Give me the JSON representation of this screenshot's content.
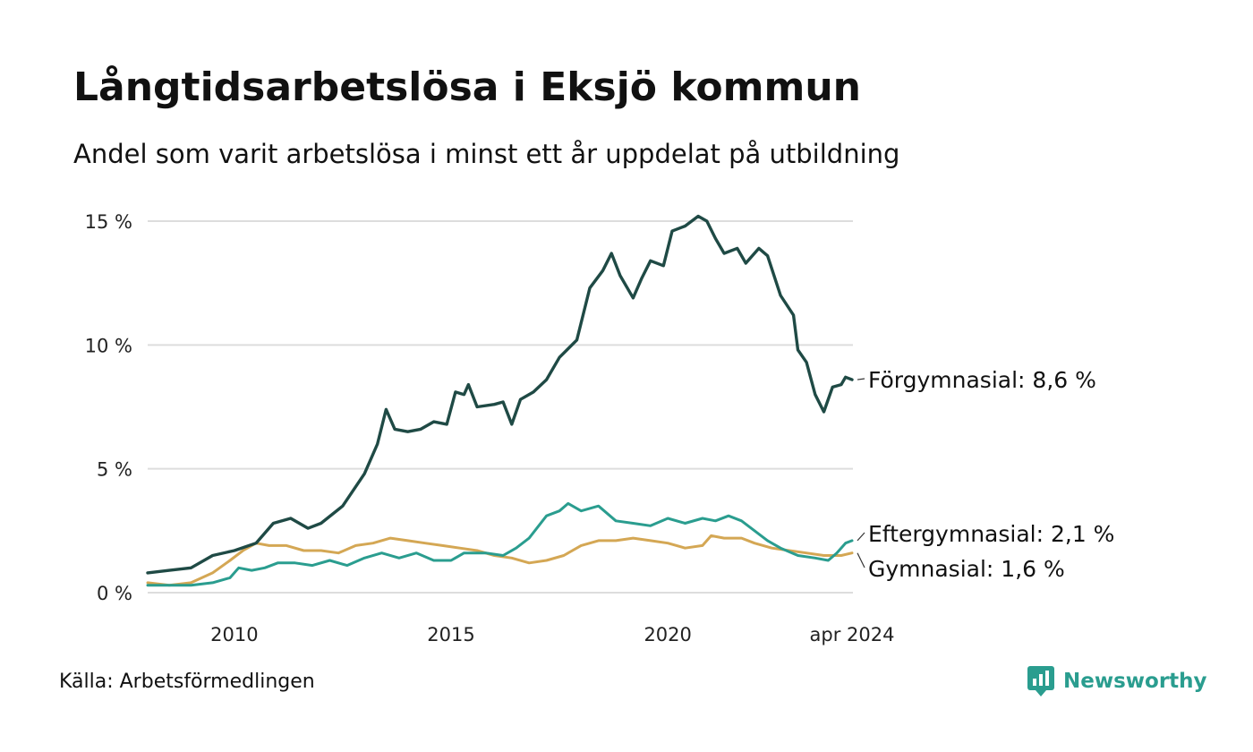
{
  "header": {
    "title": "Långtidsarbetslösa i Eksjö kommun",
    "subtitle": "Andel som varit arbetslösa i minst ett år uppdelat på utbildning"
  },
  "footer": {
    "source": "Källa: Arbetsförmedlingen",
    "brand": "Newsworthy",
    "brand_icon": "newsworthy-logo-icon"
  },
  "colors": {
    "forgymnasial": "#1f4a45",
    "eftergymnasial": "#2a9d8f",
    "gymnasial": "#d4a754",
    "grid": "#dddddd",
    "brand": "#2a9d8f"
  },
  "chart_data": {
    "type": "line",
    "title": "Långtidsarbetslösa i Eksjö kommun",
    "subtitle": "Andel som varit arbetslösa i minst ett år uppdelat på utbildning",
    "xlabel": "",
    "ylabel": "",
    "ylim": [
      0,
      15
    ],
    "yticks": [
      0,
      5,
      10,
      15
    ],
    "ytick_labels": [
      "0 %",
      "5 %",
      "10 %",
      "15 %"
    ],
    "xlim": [
      2008.0,
      2024.25
    ],
    "xticks": [
      2010,
      2015,
      2020,
      2024.25
    ],
    "xtick_labels": [
      "2010",
      "2015",
      "2020",
      "apr 2024"
    ],
    "grid": true,
    "legend": "end-labels",
    "series": [
      {
        "name": "Förgymnasial",
        "end_label": "Förgymnasial: 8,6 %",
        "color": "#1f4a45",
        "points": [
          [
            2008.0,
            0.8
          ],
          [
            2008.5,
            0.9
          ],
          [
            2009.0,
            1.0
          ],
          [
            2009.5,
            1.5
          ],
          [
            2010.0,
            1.7
          ],
          [
            2010.5,
            2.0
          ],
          [
            2010.9,
            2.8
          ],
          [
            2011.3,
            3.0
          ],
          [
            2011.7,
            2.6
          ],
          [
            2012.0,
            2.8
          ],
          [
            2012.5,
            3.5
          ],
          [
            2013.0,
            4.8
          ],
          [
            2013.3,
            6.0
          ],
          [
            2013.5,
            7.4
          ],
          [
            2013.7,
            6.6
          ],
          [
            2014.0,
            6.5
          ],
          [
            2014.3,
            6.6
          ],
          [
            2014.6,
            6.9
          ],
          [
            2014.9,
            6.8
          ],
          [
            2015.1,
            8.1
          ],
          [
            2015.3,
            8.0
          ],
          [
            2015.4,
            8.4
          ],
          [
            2015.6,
            7.5
          ],
          [
            2016.0,
            7.6
          ],
          [
            2016.2,
            7.7
          ],
          [
            2016.4,
            6.8
          ],
          [
            2016.6,
            7.8
          ],
          [
            2016.9,
            8.1
          ],
          [
            2017.2,
            8.6
          ],
          [
            2017.5,
            9.5
          ],
          [
            2017.9,
            10.2
          ],
          [
            2018.2,
            12.3
          ],
          [
            2018.5,
            13.0
          ],
          [
            2018.7,
            13.7
          ],
          [
            2018.9,
            12.8
          ],
          [
            2019.2,
            11.9
          ],
          [
            2019.4,
            12.7
          ],
          [
            2019.6,
            13.4
          ],
          [
            2019.9,
            13.2
          ],
          [
            2020.1,
            14.6
          ],
          [
            2020.4,
            14.8
          ],
          [
            2020.7,
            15.2
          ],
          [
            2020.9,
            15.0
          ],
          [
            2021.1,
            14.3
          ],
          [
            2021.3,
            13.7
          ],
          [
            2021.6,
            13.9
          ],
          [
            2021.8,
            13.3
          ],
          [
            2022.1,
            13.9
          ],
          [
            2022.3,
            13.6
          ],
          [
            2022.6,
            12.0
          ],
          [
            2022.9,
            11.2
          ],
          [
            2023.0,
            9.8
          ],
          [
            2023.2,
            9.3
          ],
          [
            2023.4,
            8.0
          ],
          [
            2023.6,
            7.3
          ],
          [
            2023.8,
            8.3
          ],
          [
            2024.0,
            8.4
          ],
          [
            2024.1,
            8.7
          ],
          [
            2024.25,
            8.6
          ]
        ]
      },
      {
        "name": "Eftergymnasial",
        "end_label": "Eftergymnasial: 2,1 %",
        "color": "#2a9d8f",
        "points": [
          [
            2008.0,
            0.3
          ],
          [
            2008.5,
            0.3
          ],
          [
            2009.0,
            0.3
          ],
          [
            2009.5,
            0.4
          ],
          [
            2009.9,
            0.6
          ],
          [
            2010.1,
            1.0
          ],
          [
            2010.4,
            0.9
          ],
          [
            2010.7,
            1.0
          ],
          [
            2011.0,
            1.2
          ],
          [
            2011.4,
            1.2
          ],
          [
            2011.8,
            1.1
          ],
          [
            2012.2,
            1.3
          ],
          [
            2012.6,
            1.1
          ],
          [
            2013.0,
            1.4
          ],
          [
            2013.4,
            1.6
          ],
          [
            2013.8,
            1.4
          ],
          [
            2014.2,
            1.6
          ],
          [
            2014.6,
            1.3
          ],
          [
            2015.0,
            1.3
          ],
          [
            2015.3,
            1.6
          ],
          [
            2015.8,
            1.6
          ],
          [
            2016.2,
            1.5
          ],
          [
            2016.5,
            1.8
          ],
          [
            2016.8,
            2.2
          ],
          [
            2017.2,
            3.1
          ],
          [
            2017.5,
            3.3
          ],
          [
            2017.7,
            3.6
          ],
          [
            2018.0,
            3.3
          ],
          [
            2018.4,
            3.5
          ],
          [
            2018.8,
            2.9
          ],
          [
            2019.2,
            2.8
          ],
          [
            2019.6,
            2.7
          ],
          [
            2020.0,
            3.0
          ],
          [
            2020.4,
            2.8
          ],
          [
            2020.8,
            3.0
          ],
          [
            2021.1,
            2.9
          ],
          [
            2021.4,
            3.1
          ],
          [
            2021.7,
            2.9
          ],
          [
            2022.0,
            2.5
          ],
          [
            2022.3,
            2.1
          ],
          [
            2022.6,
            1.8
          ],
          [
            2023.0,
            1.5
          ],
          [
            2023.4,
            1.4
          ],
          [
            2023.7,
            1.3
          ],
          [
            2023.9,
            1.6
          ],
          [
            2024.1,
            2.0
          ],
          [
            2024.25,
            2.1
          ]
        ]
      },
      {
        "name": "Gymnasial",
        "end_label": "Gymnasial: 1,6 %",
        "color": "#d4a754",
        "points": [
          [
            2008.0,
            0.4
          ],
          [
            2008.5,
            0.3
          ],
          [
            2009.0,
            0.4
          ],
          [
            2009.5,
            0.8
          ],
          [
            2009.9,
            1.3
          ],
          [
            2010.2,
            1.7
          ],
          [
            2010.5,
            2.0
          ],
          [
            2010.8,
            1.9
          ],
          [
            2011.2,
            1.9
          ],
          [
            2011.6,
            1.7
          ],
          [
            2012.0,
            1.7
          ],
          [
            2012.4,
            1.6
          ],
          [
            2012.8,
            1.9
          ],
          [
            2013.2,
            2.0
          ],
          [
            2013.6,
            2.2
          ],
          [
            2014.0,
            2.1
          ],
          [
            2014.4,
            2.0
          ],
          [
            2014.8,
            1.9
          ],
          [
            2015.2,
            1.8
          ],
          [
            2015.6,
            1.7
          ],
          [
            2016.0,
            1.5
          ],
          [
            2016.4,
            1.4
          ],
          [
            2016.8,
            1.2
          ],
          [
            2017.2,
            1.3
          ],
          [
            2017.6,
            1.5
          ],
          [
            2018.0,
            1.9
          ],
          [
            2018.4,
            2.1
          ],
          [
            2018.8,
            2.1
          ],
          [
            2019.2,
            2.2
          ],
          [
            2019.6,
            2.1
          ],
          [
            2020.0,
            2.0
          ],
          [
            2020.4,
            1.8
          ],
          [
            2020.8,
            1.9
          ],
          [
            2021.0,
            2.3
          ],
          [
            2021.3,
            2.2
          ],
          [
            2021.7,
            2.2
          ],
          [
            2022.0,
            2.0
          ],
          [
            2022.4,
            1.8
          ],
          [
            2022.8,
            1.7
          ],
          [
            2023.2,
            1.6
          ],
          [
            2023.6,
            1.5
          ],
          [
            2024.0,
            1.5
          ],
          [
            2024.25,
            1.6
          ]
        ]
      }
    ]
  }
}
